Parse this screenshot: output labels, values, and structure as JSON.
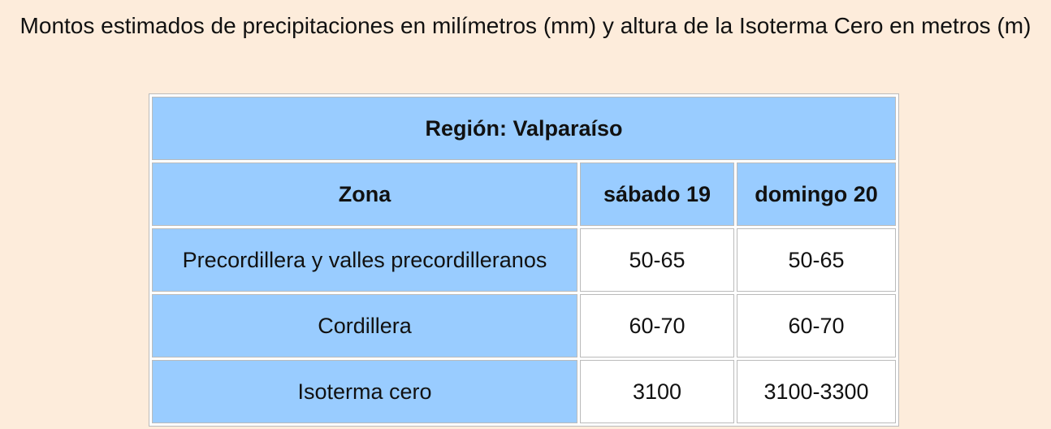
{
  "title": "Montos estimados de precipitaciones en milímetros (mm) y altura de la Isoterma Cero en metros (m)",
  "table": {
    "region": "Región: Valparaíso",
    "header": [
      "Zona",
      "sábado 19",
      "domingo 20"
    ],
    "rows": [
      [
        "Precordillera y valles precordilleranos",
        "50-65",
        "50-65"
      ],
      [
        "Cordillera",
        "60-70",
        "60-70"
      ],
      [
        "Isoterma cero",
        "3100",
        "3100-3300"
      ]
    ]
  }
}
